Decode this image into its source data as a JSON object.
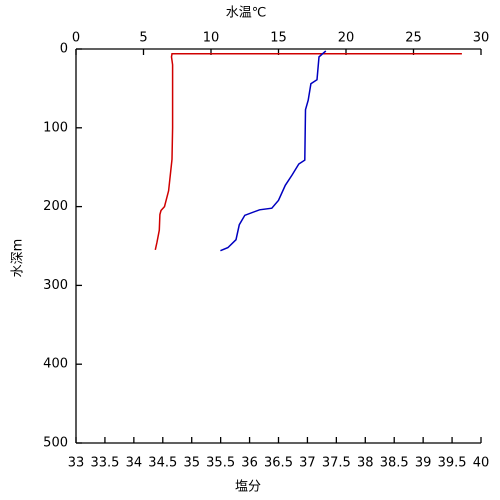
{
  "chart_data": {
    "type": "line",
    "x2_label": "水温℃",
    "x_label": "塩分",
    "y_label": "水深m",
    "x_label_color": "#cc0000",
    "x2_label_color": "#0000cc",
    "xlim": [
      33,
      40
    ],
    "xticks": [
      33,
      33.5,
      34,
      34.5,
      35,
      35.5,
      36,
      36.5,
      37,
      37.5,
      38,
      38.5,
      39,
      39.5,
      40
    ],
    "x2lim": [
      0,
      30
    ],
    "x2ticks": [
      0,
      5,
      10,
      15,
      20,
      25,
      30
    ],
    "ylim": [
      0,
      500
    ],
    "yticks": [
      0,
      100,
      200,
      300,
      400,
      500
    ],
    "y_inverted": true,
    "series": [
      {
        "name": "塩分",
        "color": "#d00000",
        "axis": "x",
        "x": [
          39.67,
          34.66,
          34.65,
          34.67,
          34.67,
          34.67,
          34.66,
          34.63,
          34.6,
          34.53,
          34.47,
          34.45,
          34.44,
          34.4,
          34.37
        ],
        "values": [
          6,
          6,
          10,
          20,
          50,
          100,
          140,
          160,
          180,
          200,
          205,
          210,
          230,
          245,
          255
        ]
      },
      {
        "name": "水温",
        "color": "#0000c0",
        "axis": "x2",
        "x": [
          18.5,
          18.0,
          17.85,
          17.4,
          17.2,
          17.0,
          16.95,
          16.5,
          16.0,
          15.5,
          15.0,
          14.5,
          13.6,
          12.5,
          12.1,
          11.85,
          11.25,
          10.7
        ],
        "values": [
          2.5,
          10,
          39,
          44,
          65,
          77,
          141,
          146,
          160,
          173,
          192,
          202,
          204,
          211,
          223,
          242,
          252,
          256
        ]
      }
    ]
  }
}
